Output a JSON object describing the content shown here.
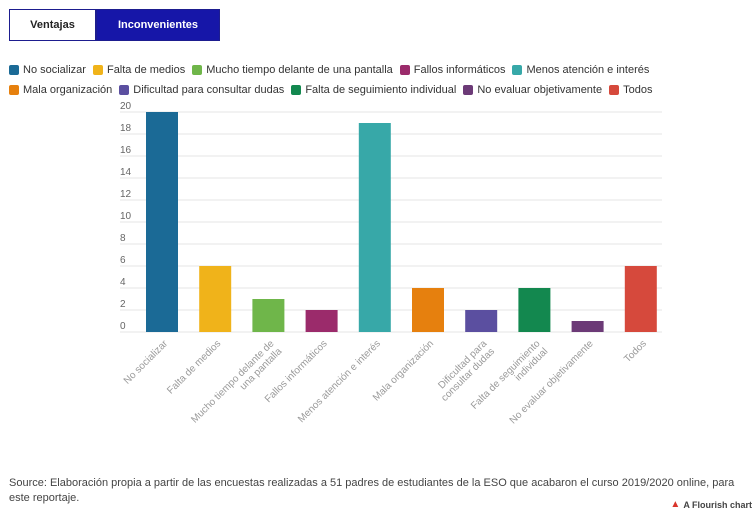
{
  "tabs": [
    {
      "label": "Ventajas",
      "active": false
    },
    {
      "label": "Inconvenientes",
      "active": true
    }
  ],
  "chart_data": {
    "type": "bar",
    "categories": [
      "No socializar",
      "Falta de medios",
      "Mucho tiempo delante de una pantalla",
      "Fallos informáticos",
      "Menos atención e interés",
      "Mala organización",
      "Dificultad para consultar dudas",
      "Falta de seguimiento individual",
      "No evaluar objetivamente",
      "Todos"
    ],
    "values": [
      20,
      6,
      3,
      2,
      19,
      4,
      2,
      4,
      1,
      6
    ],
    "colors": [
      "#1b6a96",
      "#f0b31a",
      "#6fb64a",
      "#9b2b6b",
      "#37a8a8",
      "#e6800e",
      "#5b4fa0",
      "#13884f",
      "#6c3a77",
      "#d6493c"
    ],
    "legend": [
      "No socializar",
      "Falta de medios",
      "Mucho tiempo delante de una pantalla",
      "Fallos informáticos",
      "Menos atención e interés",
      "Mala organización",
      "Dificultad para consultar dudas",
      "Falta de seguimiento individual",
      "No evaluar objetivamente",
      "Todos"
    ],
    "yticks": [
      0,
      2,
      4,
      6,
      8,
      10,
      12,
      14,
      16,
      18,
      20
    ],
    "ylim": [
      0,
      20
    ],
    "grid": true,
    "legend_position": "top-left"
  },
  "footer": {
    "source": "Source: Elaboración propia a partir de las encuestas realizadas a 51 padres de estudiantes de la ESO que acabaron el curso 2019/2020 online, para este reportaje.",
    "credit": "A Flourish chart",
    "credit_icon": "flourish-logo-icon"
  }
}
